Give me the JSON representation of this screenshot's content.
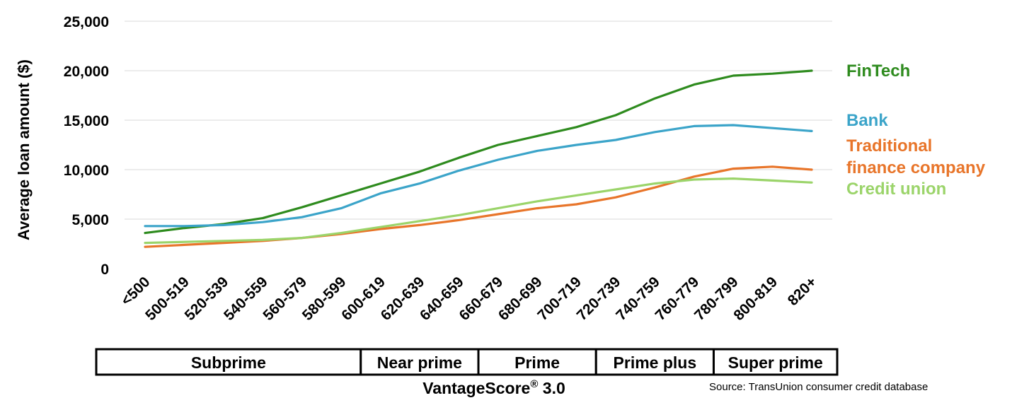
{
  "chart_data": {
    "type": "line",
    "ylabel": "Average loan amount ($)",
    "ylim": [
      0,
      25000
    ],
    "yticks": [
      "0",
      "5,000",
      "10,000",
      "15,000",
      "20,000",
      "25,000"
    ],
    "grid": "horizontal",
    "legend_placement": "right",
    "categories": [
      "<500",
      "500-519",
      "520-539",
      "540-559",
      "560-579",
      "580-599",
      "600-619",
      "620-639",
      "640-659",
      "660-679",
      "680-699",
      "700-719",
      "720-739",
      "740-759",
      "760-779",
      "780-799",
      "800-819",
      "820+"
    ],
    "series": [
      {
        "name": "FinTech",
        "color": "#2e8b1e",
        "values": [
          3600,
          4100,
          4500,
          5100,
          6200,
          7400,
          8600,
          9800,
          11200,
          12500,
          13400,
          14300,
          15500,
          17200,
          18600,
          19500,
          19700,
          20000
        ]
      },
      {
        "name": "Bank",
        "color": "#3ba4c9",
        "values": [
          4300,
          4300,
          4400,
          4700,
          5200,
          6100,
          7600,
          8600,
          9900,
          11000,
          11900,
          12500,
          13000,
          13800,
          14400,
          14500,
          14200,
          13900
        ]
      },
      {
        "name": "Traditional finance company",
        "color": "#e8752a",
        "values": [
          2200,
          2400,
          2600,
          2800,
          3100,
          3500,
          4000,
          4400,
          4900,
          5500,
          6100,
          6500,
          7200,
          8200,
          9300,
          10100,
          10300,
          10000
        ]
      },
      {
        "name": "Credit union",
        "color": "#9bd46a",
        "values": [
          2600,
          2700,
          2800,
          2900,
          3100,
          3600,
          4200,
          4800,
          5400,
          6100,
          6800,
          7400,
          8000,
          8600,
          9000,
          9100,
          8900,
          8700
        ]
      }
    ],
    "legend_lines": [
      {
        "text": "FinTech",
        "color": "#2e8b1e"
      },
      {
        "text": "Bank",
        "color": "#3ba4c9"
      },
      {
        "text": "Traditional",
        "color": "#e8752a"
      },
      {
        "text": "finance company",
        "color": "#e8752a"
      },
      {
        "text": "Credit union",
        "color": "#9bd46a"
      }
    ],
    "bands": [
      {
        "label": "Subprime",
        "from": 0,
        "to": 5
      },
      {
        "label": "Near prime",
        "from": 6,
        "to": 8
      },
      {
        "label": "Prime",
        "from": 9,
        "to": 11
      },
      {
        "label": "Prime plus",
        "from": 12,
        "to": 14
      },
      {
        "label": "Super prime",
        "from": 15,
        "to": 17
      }
    ],
    "xlabel": "VantageScore",
    "xlabel_superscript": "®",
    "xlabel_suffix": " 3.0",
    "source": "Source: TransUnion consumer credit database"
  }
}
